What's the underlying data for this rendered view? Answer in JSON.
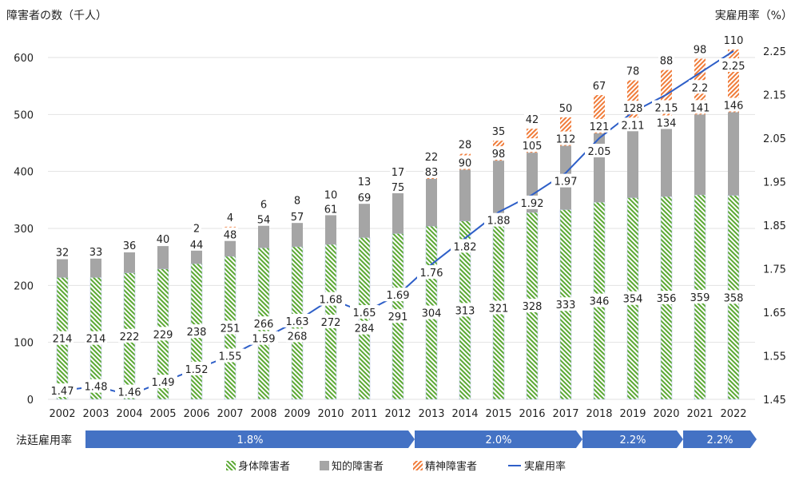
{
  "chart_data": {
    "type": "bar",
    "stacked": true,
    "ylabel": "障害者の数（千人）",
    "y2label": "実雇用率（%）",
    "ylim": [
      0,
      600
    ],
    "yticks": [
      0,
      100,
      200,
      300,
      400,
      500,
      600
    ],
    "y2lim": [
      1.45,
      2.25
    ],
    "y2ticks": [
      1.45,
      1.55,
      1.65,
      1.75,
      1.85,
      1.95,
      2.05,
      2.15,
      2.25
    ],
    "grid": true,
    "legend_position": "bottom",
    "categories": [
      "2002",
      "2003",
      "2004",
      "2005",
      "2006",
      "2007",
      "2008",
      "2009",
      "2010",
      "2011",
      "2012",
      "2013",
      "2014",
      "2015",
      "2016",
      "2017",
      "2018",
      "2019",
      "2020",
      "2021",
      "2022"
    ],
    "series": [
      {
        "name": "身体障害者",
        "type": "bar",
        "color": "#5aa832",
        "values": [
          214,
          214,
          222,
          229,
          238,
          251,
          266,
          268,
          272,
          284,
          291,
          304,
          313,
          321,
          328,
          333,
          346,
          354,
          356,
          359,
          358
        ]
      },
      {
        "name": "知的障害者",
        "type": "bar",
        "color": "#a5a5a5",
        "values": [
          32,
          33,
          36,
          40,
          44,
          48,
          54,
          57,
          61,
          69,
          75,
          83,
          90,
          98,
          105,
          112,
          121,
          128,
          134,
          141,
          146
        ]
      },
      {
        "name": "精神障害者",
        "type": "bar",
        "color": "#f07c3a",
        "values": [
          null,
          null,
          null,
          null,
          2,
          4,
          6,
          8,
          10,
          13,
          17,
          22,
          28,
          35,
          42,
          50,
          67,
          78,
          88,
          98,
          110
        ]
      },
      {
        "name": "実雇用率",
        "type": "line",
        "axis": "right",
        "color": "#2e5fc8",
        "values": [
          1.47,
          1.48,
          1.46,
          1.49,
          1.52,
          1.55,
          1.59,
          1.63,
          1.68,
          1.65,
          1.69,
          1.76,
          1.82,
          1.88,
          1.92,
          1.97,
          2.05,
          2.11,
          2.15,
          2.2,
          2.25
        ]
      }
    ],
    "legal_rate": {
      "label": "法廷雇用率",
      "color": "#4472c4",
      "periods": [
        {
          "from": "2002",
          "to": "2012",
          "label": "1.8%"
        },
        {
          "from": "2013",
          "to": "2017",
          "label": "2.0%"
        },
        {
          "from": "2018",
          "to": "2020",
          "label": "2.2%"
        },
        {
          "from": "2021",
          "to": "2022",
          "label": "2.2%"
        }
      ]
    }
  }
}
